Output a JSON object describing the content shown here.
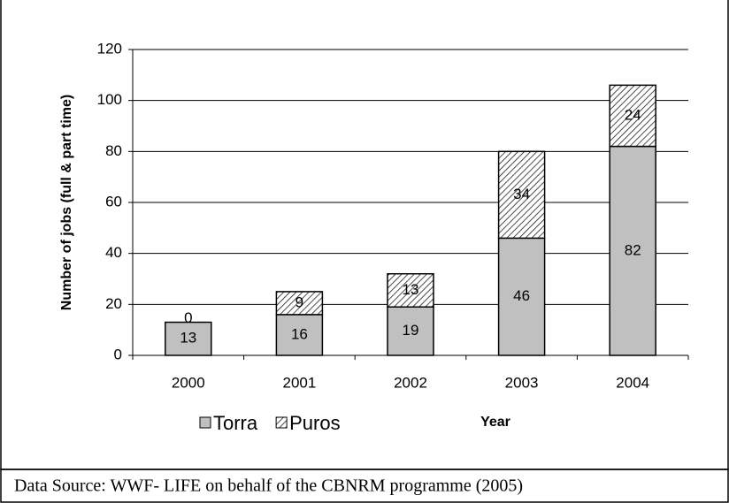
{
  "chart_data": {
    "type": "stacked_bar",
    "categories": [
      "2000",
      "2001",
      "2002",
      "2003",
      "2004"
    ],
    "series": [
      {
        "name": "Torra",
        "color": "#c0c0c0",
        "pattern": "solid",
        "values": [
          13,
          16,
          19,
          46,
          82
        ]
      },
      {
        "name": "Puros",
        "color": "#ffffff",
        "pattern": "hatch",
        "values": [
          0,
          9,
          13,
          34,
          24
        ]
      }
    ],
    "ylabel": "Number of jobs (full & part time)",
    "xlabel": "Year",
    "ylim": [
      0,
      120
    ],
    "yticks": [
      0,
      20,
      40,
      60,
      80,
      100,
      120
    ],
    "grid": true,
    "legend": "bottom-left"
  },
  "source": "Data Source: WWF- LIFE on behalf of the CBNRM programme (2005)"
}
